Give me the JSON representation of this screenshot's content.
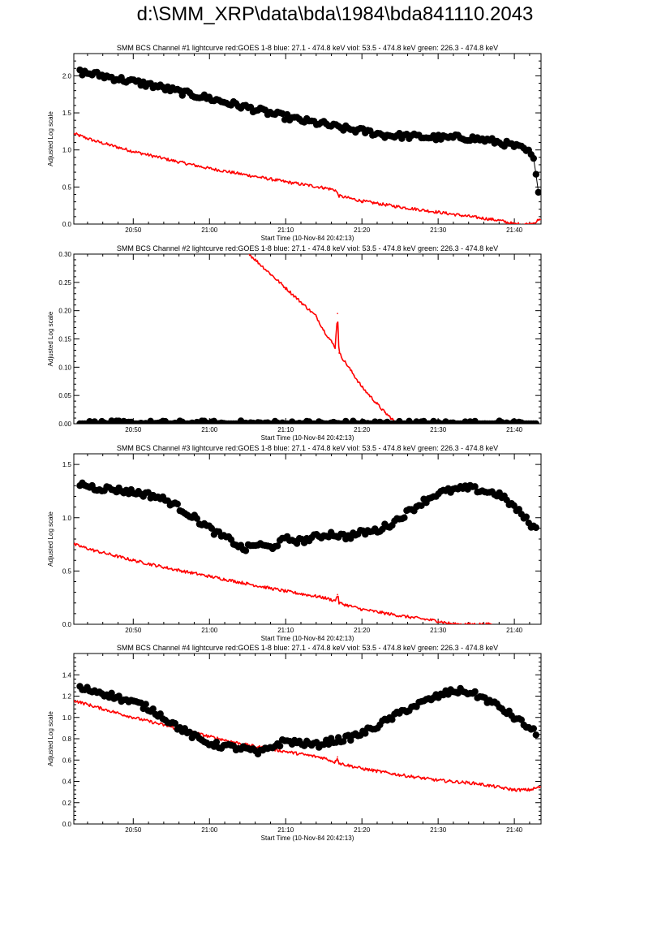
{
  "page": {
    "title": "d:\\SMM_XRP\\data\\bda\\1984\\bda841110.2043"
  },
  "colors": {
    "goes": "#ff0000",
    "bcs": "#000000",
    "axis": "#000000",
    "background": "#ffffff"
  },
  "chart_data": [
    {
      "type": "line",
      "title": "SMM BCS Channel #1 lightcurve  red:GOES 1-8  blue: 27.1 - 474.8 keV  viol: 53.5 - 474.8 keV  green: 226.3 - 474.8 keV",
      "xlabel": "Start Time (10-Nov-84 20:42:13)",
      "ylabel": "Adjusted Log scale",
      "xlim": [
        42.2,
        103.5
      ],
      "ylim": [
        0.0,
        2.3
      ],
      "xticks": [
        50,
        60,
        70,
        80,
        90,
        100
      ],
      "xticklabels": [
        "20:50",
        "21:00",
        "21:10",
        "21:20",
        "21:30",
        "21:40"
      ],
      "yticks": [
        0.0,
        0.5,
        1.0,
        1.5,
        2.0
      ],
      "yticklabels": [
        "0.0",
        "0.5",
        "1.0",
        "1.5",
        "2.0"
      ],
      "series": [
        {
          "name": "GOES 1-8",
          "color": "#ff0000",
          "style": "line",
          "x": [
            42.2,
            45,
            50,
            55,
            60,
            65,
            70,
            75,
            76.5,
            77,
            80,
            85,
            90,
            95,
            98,
            100,
            102,
            103.5
          ],
          "y": [
            1.22,
            1.12,
            0.98,
            0.86,
            0.75,
            0.66,
            0.57,
            0.49,
            0.46,
            0.38,
            0.31,
            0.23,
            0.16,
            0.09,
            0.05,
            0.0,
            0.0,
            0.06
          ]
        },
        {
          "name": "BCS Channel #1",
          "color": "#000000",
          "style": "dots",
          "x": [
            43,
            45,
            47,
            49,
            51,
            53,
            55,
            57,
            59,
            61,
            63,
            65,
            67,
            69,
            71,
            73,
            75,
            77,
            79,
            81,
            83,
            85,
            87,
            89,
            91,
            93,
            95,
            97,
            99,
            101,
            102,
            102.6,
            103,
            103.3
          ],
          "y": [
            2.05,
            2.02,
            1.98,
            1.94,
            1.9,
            1.86,
            1.81,
            1.76,
            1.72,
            1.67,
            1.62,
            1.57,
            1.52,
            1.47,
            1.42,
            1.38,
            1.35,
            1.3,
            1.27,
            1.24,
            1.2,
            1.19,
            1.18,
            1.17,
            1.16,
            1.17,
            1.15,
            1.12,
            1.08,
            1.02,
            0.96,
            0.85,
            0.5,
            0.44
          ]
        }
      ]
    },
    {
      "type": "line",
      "title": "SMM BCS Channel #2 lightcurve  red:GOES 1-8  blue: 27.1 - 474.8 keV  viol: 53.5 - 474.8 keV  green: 226.3 - 474.8 keV",
      "xlabel": "Start Time (10-Nov-84 20:42:13)",
      "ylabel": "Adjusted Log scale",
      "xlim": [
        42.2,
        103.5
      ],
      "ylim": [
        0.0,
        0.3
      ],
      "xticks": [
        50,
        60,
        70,
        80,
        90,
        100
      ],
      "xticklabels": [
        "20:50",
        "21:00",
        "21:10",
        "21:20",
        "21:30",
        "21:40"
      ],
      "yticks": [
        0.0,
        0.05,
        0.1,
        0.15,
        0.2,
        0.25,
        0.3
      ],
      "yticklabels": [
        "0.00",
        "0.05",
        "0.10",
        "0.15",
        "0.20",
        "0.25",
        "0.30"
      ],
      "series": [
        {
          "name": "GOES 1-8",
          "color": "#ff0000",
          "style": "line",
          "x": [
            65.2,
            66,
            68,
            70,
            72,
            74,
            75,
            76,
            76.5,
            76.8,
            77,
            78,
            79,
            80,
            81,
            82,
            83,
            84,
            84.5,
            87,
            87.3
          ],
          "y": [
            0.3,
            0.29,
            0.265,
            0.24,
            0.215,
            0.19,
            0.165,
            0.145,
            0.135,
            0.195,
            0.125,
            0.105,
            0.085,
            0.065,
            0.05,
            0.035,
            0.02,
            0.008,
            0.0,
            0.0,
            0.008
          ]
        },
        {
          "name": "BCS Channel #2",
          "color": "#000000",
          "style": "dots",
          "x": [
            43,
            46,
            49,
            52,
            55,
            58,
            61,
            64,
            67,
            70,
            73,
            76,
            79,
            82,
            85,
            88,
            91,
            94,
            97,
            100,
            103
          ],
          "y": [
            0,
            0,
            0,
            0,
            0,
            0,
            0,
            0,
            0,
            0,
            0,
            0,
            0,
            0,
            0,
            0,
            0,
            0,
            0,
            0,
            0
          ]
        }
      ]
    },
    {
      "type": "line",
      "title": "SMM BCS Channel #3 lightcurve  red:GOES 1-8  blue: 27.1 - 474.8 keV  viol: 53.5 - 474.8 keV  green: 226.3 - 474.8 keV",
      "xlabel": "Start Time (10-Nov-84 20:42:13)",
      "ylabel": "Adjusted Log scale",
      "xlim": [
        42.2,
        103.5
      ],
      "ylim": [
        0.0,
        1.6
      ],
      "xticks": [
        50,
        60,
        70,
        80,
        90,
        100
      ],
      "xticklabels": [
        "20:50",
        "21:00",
        "21:10",
        "21:20",
        "21:30",
        "21:40"
      ],
      "yticks": [
        0.0,
        0.5,
        1.0,
        1.5
      ],
      "yticklabels": [
        "0.0",
        "0.5",
        "1.0",
        "1.5"
      ],
      "series": [
        {
          "name": "GOES 1-8",
          "color": "#ff0000",
          "style": "line",
          "x": [
            42.2,
            45,
            50,
            55,
            60,
            65,
            70,
            75,
            76.5,
            76.8,
            77,
            80,
            85,
            90,
            92,
            94,
            97
          ],
          "y": [
            0.75,
            0.69,
            0.6,
            0.52,
            0.45,
            0.38,
            0.31,
            0.25,
            0.22,
            0.28,
            0.2,
            0.14,
            0.08,
            0.03,
            0.0,
            0.0,
            0.0
          ]
        },
        {
          "name": "BCS Channel #3",
          "color": "#000000",
          "style": "dots",
          "x": [
            43,
            45,
            47,
            49,
            51,
            53,
            55,
            57,
            59,
            61,
            63,
            64.5,
            66,
            68,
            70,
            72,
            74,
            76,
            78,
            80,
            82,
            84,
            86,
            88,
            90,
            92,
            94,
            96,
            98,
            100,
            102,
            103
          ],
          "y": [
            1.32,
            1.28,
            1.27,
            1.25,
            1.23,
            1.2,
            1.14,
            1.05,
            0.95,
            0.85,
            0.78,
            0.7,
            0.75,
            0.72,
            0.8,
            0.78,
            0.82,
            0.85,
            0.82,
            0.86,
            0.88,
            0.95,
            1.05,
            1.15,
            1.23,
            1.26,
            1.28,
            1.25,
            1.22,
            1.1,
            0.95,
            0.88
          ]
        }
      ]
    },
    {
      "type": "line",
      "title": "SMM BCS Channel #4 lightcurve  red:GOES 1-8  blue: 27.1 - 474.8 keV  viol: 53.5 - 474.8 keV  green: 226.3 - 474.8 keV",
      "xlabel": "Start Time (10-Nov-84 20:42:13)",
      "ylabel": "Adjusted Log scale",
      "xlim": [
        42.2,
        103.5
      ],
      "ylim": [
        0.0,
        1.6
      ],
      "xticks": [
        50,
        60,
        70,
        80,
        90,
        100
      ],
      "xticklabels": [
        "20:50",
        "21:00",
        "21:10",
        "21:20",
        "21:30",
        "21:40"
      ],
      "yticks": [
        0.0,
        0.2,
        0.4,
        0.6,
        0.8,
        1.0,
        1.2,
        1.4
      ],
      "yticklabels": [
        "0.0",
        "0.2",
        "0.4",
        "0.6",
        "0.8",
        "1.0",
        "1.2",
        "1.4"
      ],
      "series": [
        {
          "name": "GOES 1-8",
          "color": "#ff0000",
          "style": "line",
          "x": [
            42.2,
            45,
            50,
            55,
            60,
            65,
            70,
            75,
            76.5,
            76.8,
            77,
            80,
            85,
            90,
            95,
            100,
            102,
            103.5
          ],
          "y": [
            1.16,
            1.1,
            1.0,
            0.91,
            0.82,
            0.74,
            0.68,
            0.62,
            0.58,
            0.63,
            0.57,
            0.52,
            0.46,
            0.41,
            0.38,
            0.32,
            0.32,
            0.35
          ]
        },
        {
          "name": "BCS Channel #4",
          "color": "#000000",
          "style": "dots",
          "x": [
            43,
            45,
            47,
            49,
            51,
            53,
            55,
            57,
            59,
            61,
            63,
            65,
            66.5,
            68,
            70,
            72,
            74,
            76,
            78,
            80,
            82,
            84,
            86,
            88,
            90,
            92,
            94,
            96,
            98,
            100,
            102,
            103
          ],
          "y": [
            1.27,
            1.25,
            1.21,
            1.16,
            1.12,
            1.05,
            0.95,
            0.86,
            0.78,
            0.74,
            0.72,
            0.7,
            0.66,
            0.72,
            0.78,
            0.76,
            0.74,
            0.78,
            0.8,
            0.85,
            0.92,
            1.0,
            1.08,
            1.14,
            1.2,
            1.25,
            1.24,
            1.18,
            1.1,
            1.0,
            0.9,
            0.84
          ]
        }
      ]
    }
  ]
}
